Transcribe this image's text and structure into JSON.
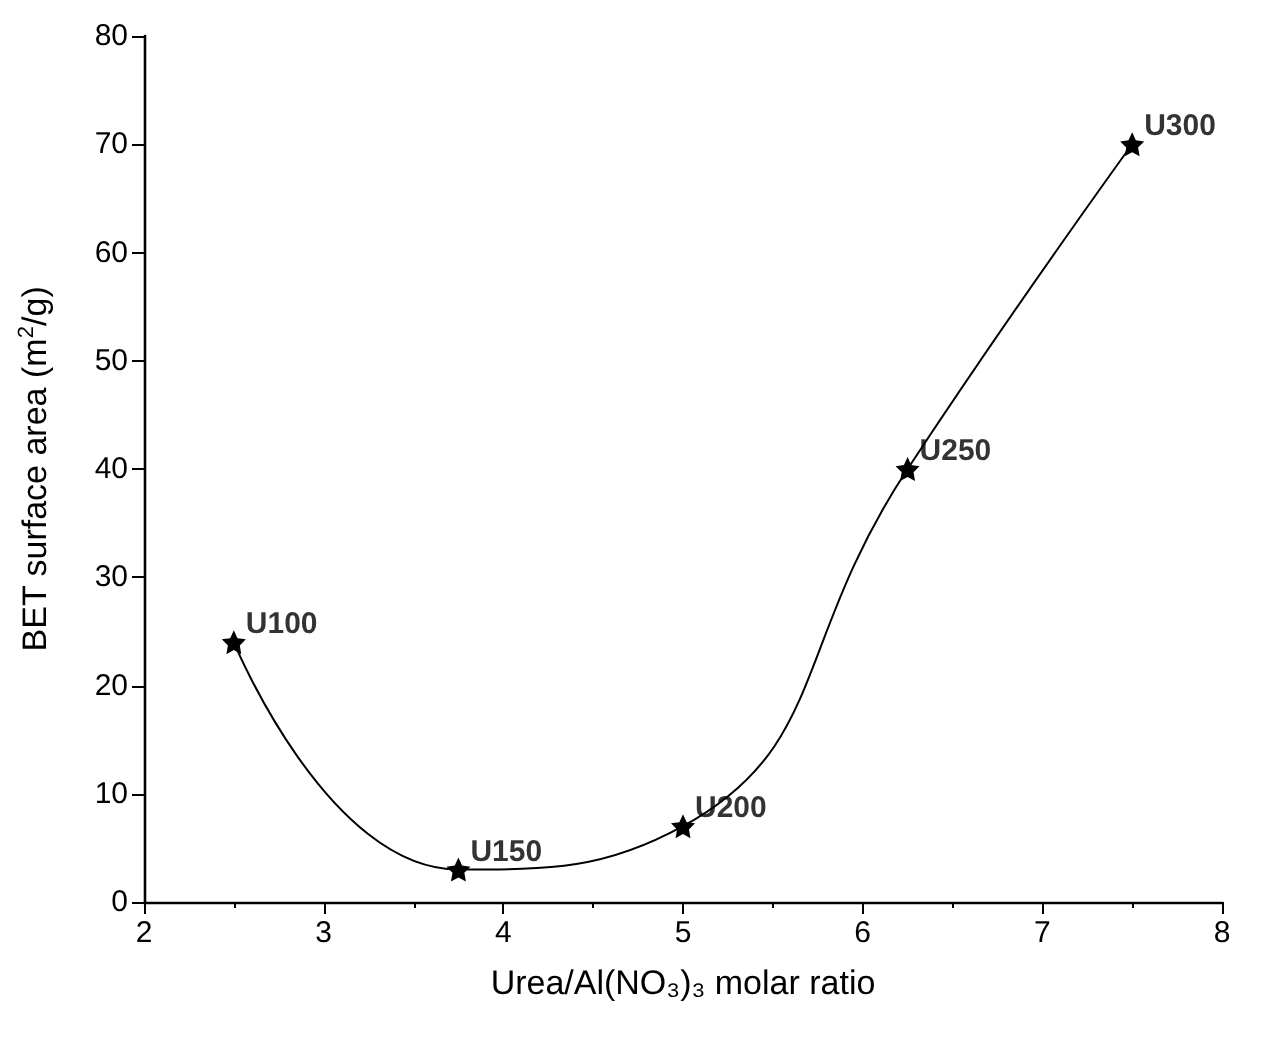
{
  "chart_data": {
    "type": "line",
    "xlabel": "Urea/Al(NO₃)₃ molar ratio",
    "ylabel": "BET surface area (m$^{2}$/g)",
    "x": [
      2.5,
      3.75,
      5,
      6.25,
      7.5
    ],
    "series": [
      {
        "color": "#000000",
        "values": [
          24,
          3,
          7,
          40,
          70
        ]
      }
    ],
    "xlim": [
      2,
      8
    ],
    "xticks": [
      2,
      3,
      4,
      5,
      6,
      7,
      8
    ],
    "ylim": [
      0,
      80
    ],
    "yticks": [
      0,
      10,
      20,
      30,
      40,
      50,
      60,
      70,
      80
    ],
    "grid": false,
    "marker": "star",
    "line_style": "solid",
    "annotations": [
      {
        "text": "U100",
        "x": 2.5,
        "y": 24
      },
      {
        "text": "U150",
        "x": 3.75,
        "y": 3
      },
      {
        "text": "U200",
        "x": 5,
        "y": 7
      },
      {
        "text": "U250",
        "x": 6.25,
        "y": 40
      },
      {
        "text": "U300",
        "x": 7.5,
        "y": 70
      }
    ]
  }
}
